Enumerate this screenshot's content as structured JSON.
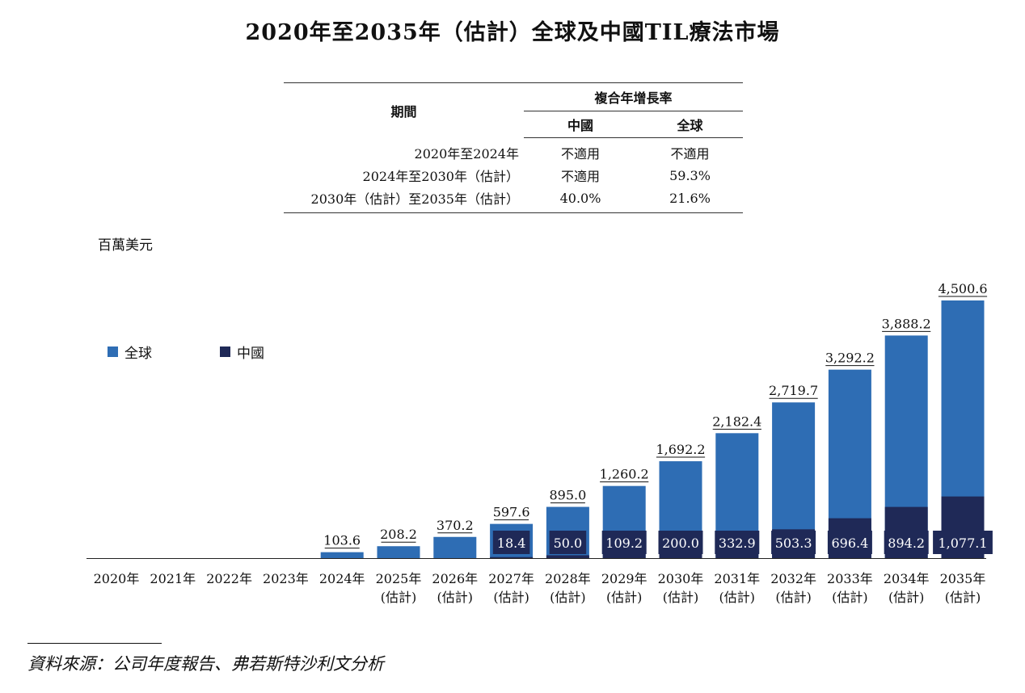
{
  "title": "2020年至2035年（估計）全球及中國TIL療法市場",
  "cagr_table": {
    "period_header": "期間",
    "cagr_header": "複合年增長率",
    "col_china": "中國",
    "col_global": "全球",
    "rows": [
      {
        "period": "2020年至2024年",
        "china": "不適用",
        "global": "不適用"
      },
      {
        "period": "2024年至2030年（估計）",
        "china": "不適用",
        "global": "59.3%"
      },
      {
        "period": "2030年（估計）至2035年（估計）",
        "china": "40.0%",
        "global": "21.6%"
      }
    ]
  },
  "unit_label": "百萬美元",
  "legend": {
    "global": "全球",
    "china": "中國"
  },
  "colors": {
    "global": "#2e6db4",
    "china": "#1f2957",
    "label_bg": "#1f2957"
  },
  "chart_data": {
    "type": "bar",
    "ylabel": "百萬美元",
    "categories": [
      "2020年",
      "2021年",
      "2022年",
      "2023年",
      "2024年",
      "2025年",
      "2026年",
      "2027年",
      "2028年",
      "2029年",
      "2030年",
      "2031年",
      "2032年",
      "2033年",
      "2034年",
      "2035年"
    ],
    "category_suffix": "(估計)",
    "estimated_from_index": 5,
    "series": [
      {
        "name": "全球",
        "values": [
          null,
          null,
          null,
          null,
          103.6,
          208.2,
          370.2,
          597.6,
          895.0,
          1260.2,
          1692.2,
          2182.4,
          2719.7,
          3292.2,
          3888.2,
          4500.6
        ],
        "labels": [
          "",
          "",
          "",
          "",
          "103.6",
          "208.2",
          "370.2",
          "597.6",
          "895.0",
          "1,260.2",
          "1,692.2",
          "2,182.4",
          "2,719.7",
          "3,292.2",
          "3,888.2",
          "4,500.6"
        ]
      },
      {
        "name": "中國",
        "values": [
          null,
          null,
          null,
          null,
          null,
          null,
          null,
          18.4,
          50.0,
          109.2,
          200.0,
          332.9,
          503.3,
          696.4,
          894.2,
          1077.1
        ],
        "labels": [
          "",
          "",
          "",
          "",
          "",
          "",
          "",
          "18.4",
          "50.0",
          "109.2",
          "200.0",
          "332.9",
          "503.3",
          "696.4",
          "894.2",
          "1,077.1"
        ]
      }
    ],
    "ylim": [
      0,
      4500.6
    ]
  },
  "source": "資料來源：公司年度報告、弗若斯特沙利文分析"
}
